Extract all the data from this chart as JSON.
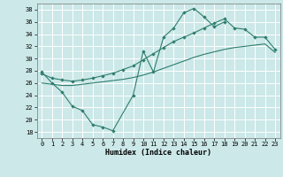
{
  "xlabel": "Humidex (Indice chaleur)",
  "bg_color": "#cce8e8",
  "line_color": "#2e7d6e",
  "grid_color": "#ffffff",
  "xlim": [
    -0.5,
    23.5
  ],
  "ylim": [
    17,
    39
  ],
  "yticks": [
    18,
    20,
    22,
    24,
    26,
    28,
    30,
    32,
    34,
    36,
    38
  ],
  "xticks": [
    0,
    1,
    2,
    3,
    4,
    5,
    6,
    7,
    8,
    9,
    10,
    11,
    12,
    13,
    14,
    15,
    16,
    17,
    18,
    19,
    20,
    21,
    22,
    23
  ],
  "line1_x": [
    0,
    1,
    2,
    3,
    4,
    5,
    6,
    7,
    9,
    10,
    11,
    12,
    13,
    14,
    15,
    16,
    17,
    18
  ],
  "line1_y": [
    27.8,
    26.0,
    24.5,
    22.2,
    21.5,
    19.2,
    18.8,
    18.2,
    24.0,
    31.2,
    27.8,
    33.5,
    35.0,
    37.5,
    38.2,
    36.8,
    35.2,
    36.0
  ],
  "line2_x": [
    0,
    1,
    2,
    3,
    4,
    5,
    6,
    7,
    8,
    9,
    10,
    11,
    12,
    13,
    14,
    15,
    16,
    17,
    18,
    19,
    20,
    21,
    22,
    23
  ],
  "line2_y": [
    26.0,
    25.8,
    25.6,
    25.6,
    25.8,
    26.0,
    26.2,
    26.4,
    26.6,
    26.9,
    27.3,
    27.8,
    28.4,
    29.0,
    29.6,
    30.2,
    30.7,
    31.1,
    31.5,
    31.8,
    32.0,
    32.2,
    32.4,
    31.0
  ],
  "line3_x": [
    0,
    1,
    2,
    3,
    4,
    5,
    6,
    7,
    8,
    9,
    10,
    11,
    12,
    13,
    14,
    15,
    16,
    17,
    18,
    19,
    20,
    21,
    22,
    23
  ],
  "line3_y": [
    27.5,
    26.8,
    26.5,
    26.3,
    26.5,
    26.8,
    27.2,
    27.6,
    28.2,
    28.8,
    29.8,
    30.8,
    31.8,
    32.8,
    33.5,
    34.2,
    35.0,
    35.8,
    36.5,
    35.0,
    34.8,
    33.5,
    33.5,
    31.5
  ]
}
